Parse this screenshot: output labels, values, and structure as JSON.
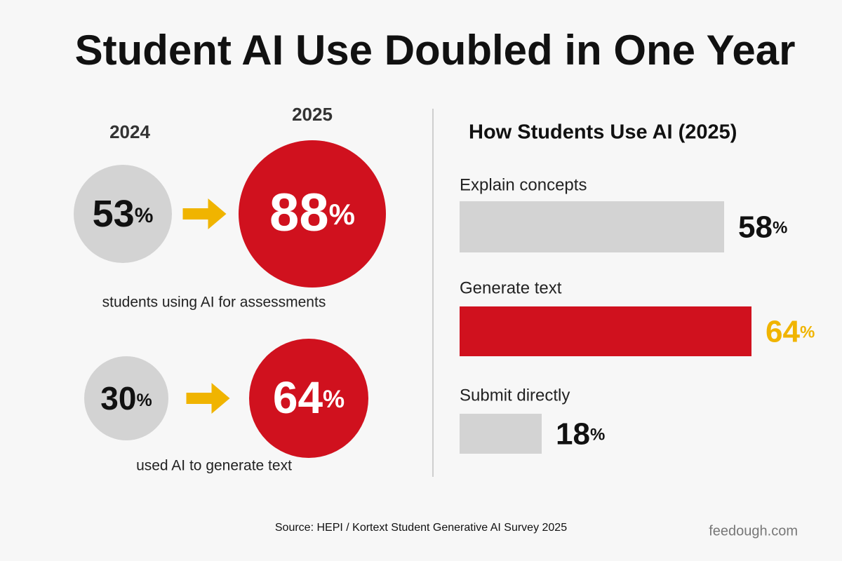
{
  "title": "Student AI Use Doubled in One Year",
  "chart_data": [
    {
      "type": "comparison",
      "unit": "%",
      "categories": [
        "students using AI for assessments",
        "used AI to generate text"
      ],
      "series": [
        {
          "name": "2024",
          "color": "#d3d3d3",
          "text_color": "#111111",
          "values": [
            53,
            30
          ]
        },
        {
          "name": "2025",
          "color": "#d0111e",
          "text_color": "#ffffff",
          "values": [
            88,
            64
          ]
        }
      ],
      "arrow_color": "#f0b400"
    },
    {
      "type": "bar",
      "title": "How Students Use AI (2025)",
      "unit": "%",
      "categories": [
        "Explain concepts",
        "Generate text",
        "Submit directly"
      ],
      "values": [
        58,
        64,
        18
      ],
      "colors": [
        "#d3d3d3",
        "#d0111e",
        "#d3d3d3"
      ],
      "label_colors": [
        "#111111",
        "#f0b400",
        "#111111"
      ],
      "xlim": [
        0,
        80
      ]
    }
  ],
  "source": "Source: HEPI / Kortext Student Generative AI Survey 2025",
  "footer": "feedough.com"
}
